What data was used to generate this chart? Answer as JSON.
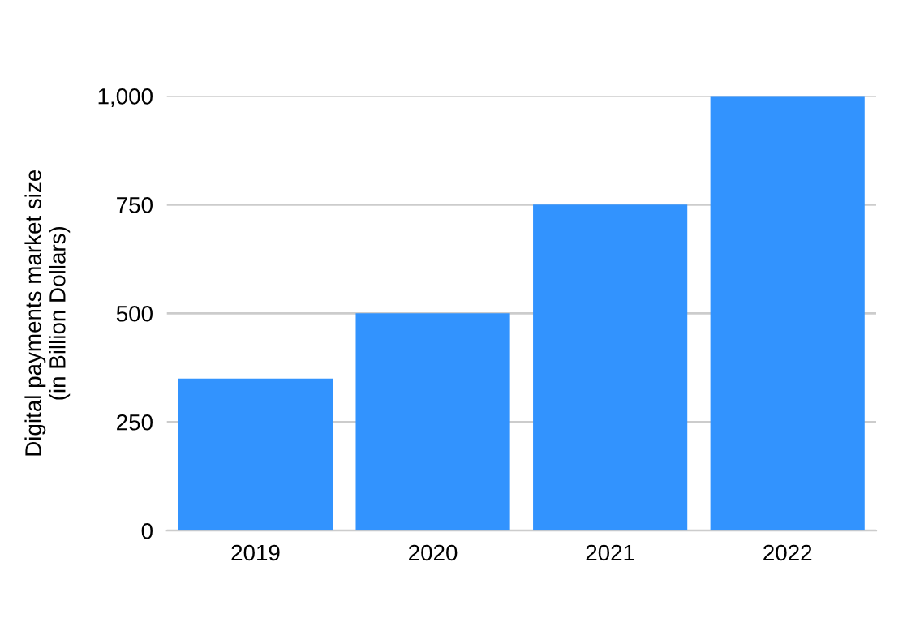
{
  "chart_data": {
    "type": "bar",
    "ylabel": "Digital payments market size\n(in Billion Dollars)",
    "categories": [
      "2019",
      "2020",
      "2021",
      "2022"
    ],
    "values": [
      350,
      500,
      750,
      1000
    ],
    "color": "#3293fe",
    "ylim": [
      0,
      1000
    ],
    "yticks": [
      0,
      250,
      500,
      750,
      {
        "value": 1000,
        "label": "1,000"
      }
    ],
    "grid": "y"
  }
}
